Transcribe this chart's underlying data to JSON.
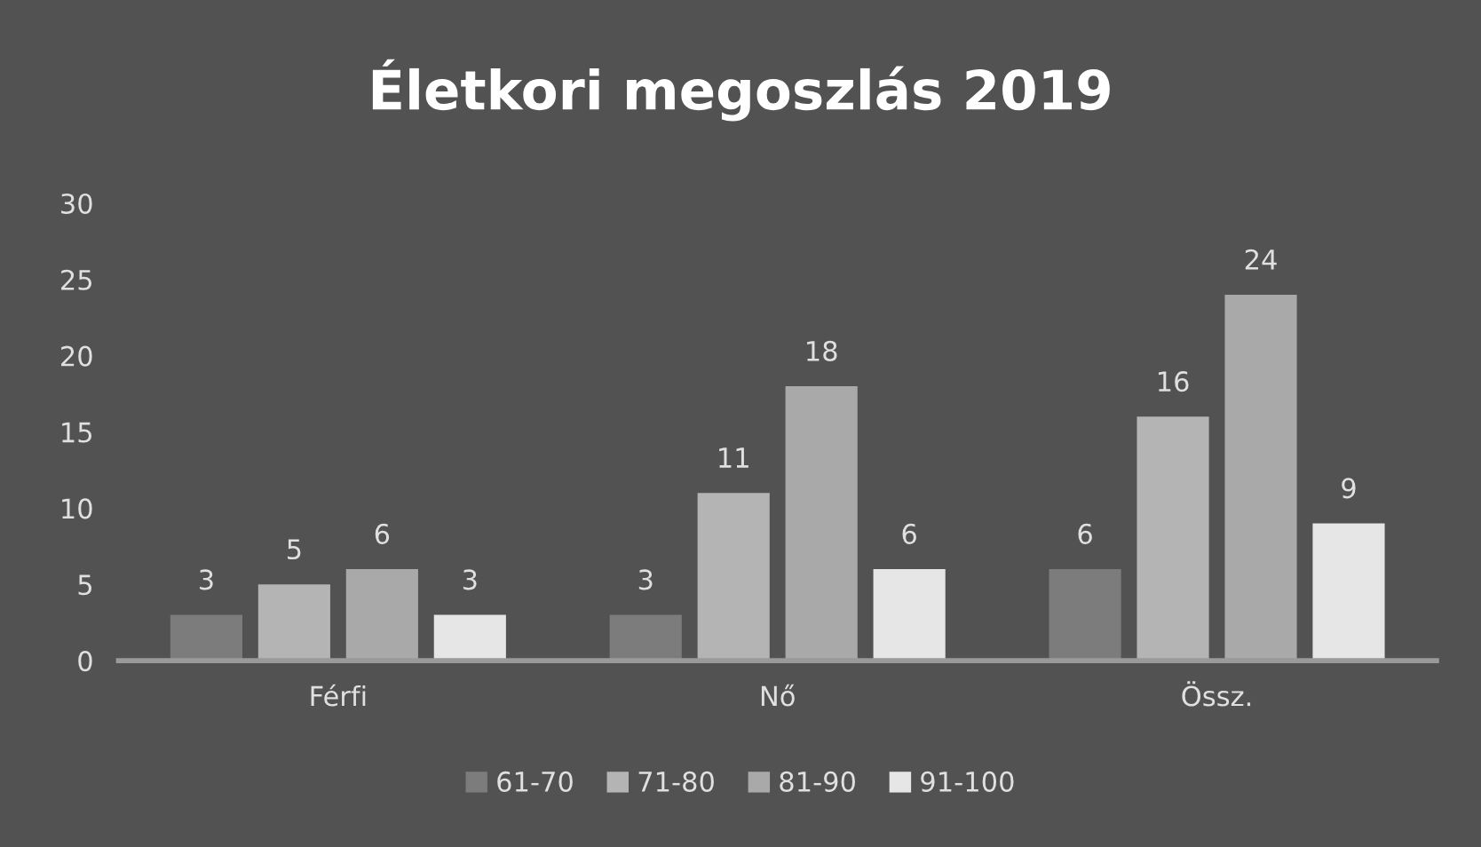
{
  "chart_data": {
    "type": "bar",
    "title": "Életkori megoszlás 2019",
    "categories": [
      "Férfi",
      "Nő",
      "Össz."
    ],
    "series": [
      {
        "name": "61-70",
        "color": "#7c7c7c",
        "values": [
          3,
          3,
          6
        ]
      },
      {
        "name": "71-80",
        "color": "#b4b4b4",
        "values": [
          5,
          11,
          16
        ]
      },
      {
        "name": "81-90",
        "color": "#a9a9a9",
        "values": [
          6,
          18,
          24
        ]
      },
      {
        "name": "91-100",
        "color": "#e6e6e6",
        "values": [
          3,
          6,
          9
        ]
      }
    ],
    "ylim": [
      0,
      30
    ],
    "yticks": [
      0,
      5,
      10,
      15,
      20,
      25,
      30
    ],
    "grid": false,
    "legend": "bottom",
    "data_labels": true
  }
}
